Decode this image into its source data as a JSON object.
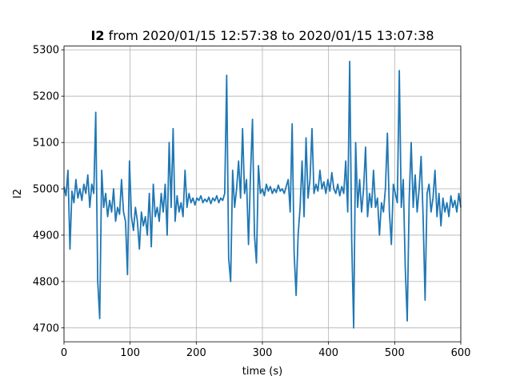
{
  "chart_data": {
    "type": "line",
    "title": {
      "name": "I2",
      "text": "from 2020/01/15 12:57:38 to 2020/01/15 13:07:38"
    },
    "xlabel": "time (s)",
    "ylabel": "I2",
    "xlim": [
      0,
      600
    ],
    "ylim": [
      4670,
      5308
    ],
    "xticks": [
      0,
      100,
      200,
      300,
      400,
      500,
      600
    ],
    "yticks": [
      4700,
      4800,
      4900,
      5000,
      5100,
      5200,
      5300
    ],
    "grid": true,
    "series": [
      {
        "name": "I2",
        "color": "#1f77b4",
        "x": [
          0,
          3,
          6,
          9,
          12,
          15,
          18,
          21,
          24,
          27,
          30,
          33,
          36,
          39,
          42,
          45,
          48,
          51,
          54,
          57,
          60,
          63,
          66,
          69,
          72,
          75,
          78,
          81,
          84,
          87,
          90,
          93,
          96,
          99,
          102,
          105,
          108,
          111,
          114,
          117,
          120,
          123,
          126,
          129,
          132,
          135,
          138,
          141,
          144,
          147,
          150,
          153,
          156,
          159,
          162,
          165,
          168,
          171,
          174,
          177,
          180,
          183,
          186,
          189,
          192,
          195,
          198,
          201,
          204,
          207,
          210,
          213,
          216,
          219,
          222,
          225,
          228,
          231,
          234,
          237,
          240,
          243,
          246,
          249,
          252,
          255,
          258,
          261,
          264,
          267,
          270,
          273,
          276,
          279,
          282,
          285,
          288,
          291,
          294,
          297,
          300,
          303,
          306,
          309,
          312,
          315,
          318,
          321,
          324,
          327,
          330,
          333,
          336,
          339,
          342,
          345,
          348,
          351,
          354,
          357,
          360,
          363,
          366,
          369,
          372,
          375,
          378,
          381,
          384,
          387,
          390,
          393,
          396,
          399,
          402,
          405,
          408,
          411,
          414,
          417,
          420,
          423,
          426,
          429,
          432,
          435,
          438,
          441,
          444,
          447,
          450,
          453,
          456,
          459,
          462,
          465,
          468,
          471,
          474,
          477,
          480,
          483,
          486,
          489,
          492,
          495,
          498,
          501,
          504,
          507,
          510,
          513,
          516,
          519,
          522,
          525,
          528,
          531,
          534,
          537,
          540,
          543,
          546,
          549,
          552,
          555,
          558,
          561,
          564,
          567,
          570,
          573,
          576,
          579,
          582,
          585,
          588,
          591,
          594,
          597,
          600
        ],
        "values": [
          5005,
          4985,
          5040,
          4870,
          4995,
          4970,
          5020,
          4980,
          5000,
          4975,
          5010,
          4990,
          5030,
          4960,
          5010,
          4990,
          5165,
          4800,
          4720,
          5040,
          4960,
          4990,
          4940,
          4975,
          4950,
          5000,
          4930,
          4960,
          4945,
          5020,
          4950,
          4930,
          4815,
          5060,
          4940,
          4910,
          4960,
          4930,
          4870,
          4950,
          4920,
          4940,
          4900,
          4990,
          4875,
          5010,
          4940,
          4960,
          4930,
          4990,
          4950,
          5010,
          4900,
          5100,
          4960,
          5130,
          4930,
          4985,
          4950,
          4970,
          4940,
          5040,
          4960,
          4990,
          4970,
          4980,
          4965,
          4980,
          4975,
          4985,
          4970,
          4978,
          4972,
          4982,
          4968,
          4980,
          4974,
          4985,
          4970,
          4980,
          4975,
          4990,
          5245,
          4850,
          4800,
          5040,
          4960,
          5000,
          5060,
          4980,
          5130,
          4990,
          5020,
          4880,
          5030,
          5150,
          4900,
          4840,
          5050,
          4990,
          5000,
          4985,
          5010,
          4995,
          5005,
          4990,
          5000,
          4992,
          5008,
          4995,
          5000,
          4990,
          5005,
          5020,
          4950,
          5140,
          4860,
          4770,
          4900,
          4960,
          5060,
          4940,
          5110,
          4980,
          5020,
          5130,
          4990,
          5010,
          4995,
          5040,
          5000,
          5015,
          4990,
          5020,
          4995,
          5035,
          5000,
          4990,
          5010,
          4985,
          5005,
          4990,
          5060,
          4950,
          5275,
          4890,
          4700,
          5100,
          4960,
          5020,
          4950,
          5000,
          5090,
          4940,
          4990,
          4960,
          5040,
          4960,
          4980,
          4900,
          4970,
          4950,
          5000,
          5120,
          4950,
          4880,
          5010,
          4990,
          4970,
          5255,
          4960,
          5020,
          4830,
          4715,
          4980,
          5100,
          4960,
          5030,
          4950,
          5000,
          5070,
          4940,
          4760,
          4990,
          5010,
          4950,
          4980,
          5040,
          4940,
          4990,
          4920,
          4980,
          4950,
          4970,
          4940,
          4985,
          4960,
          4975,
          4950,
          4990,
          4960
        ]
      }
    ]
  }
}
